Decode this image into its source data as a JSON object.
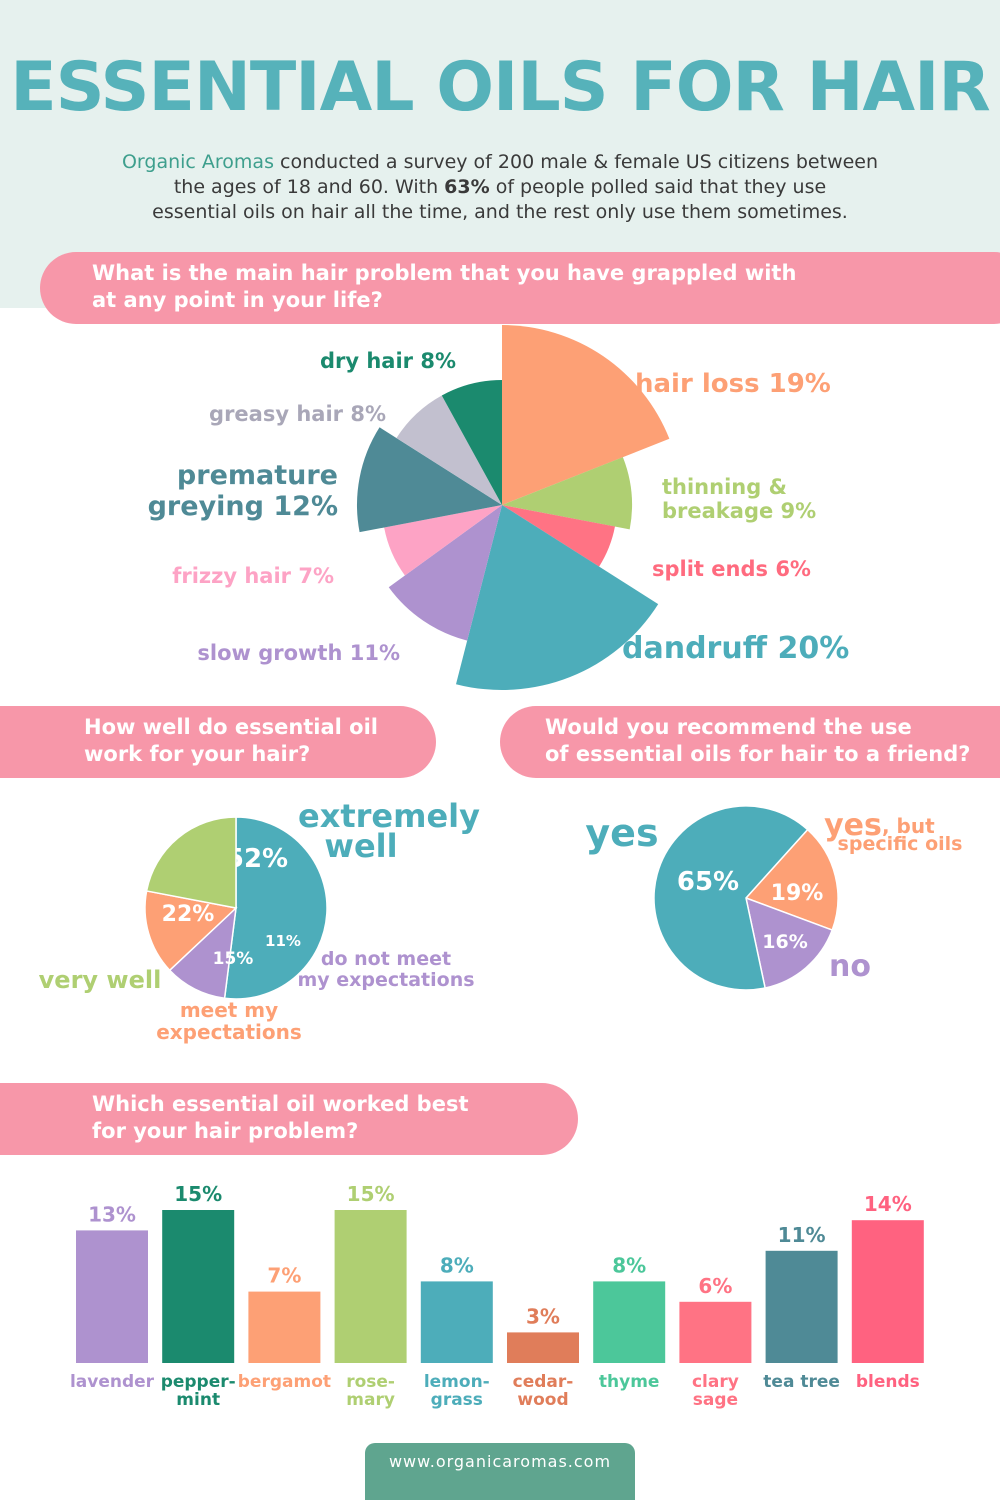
{
  "title": "ESSENTIAL OILS FOR HAIR",
  "intro": {
    "brand": "Organic Aromas",
    "line1": " conducted a survey of 200 male & female US citizens between",
    "line2": "the ages of 18 and 60. With ",
    "highlight": "63%",
    "line3": " of people polled said that they use",
    "line4": "essential oils on hair all the time, and the rest only use them sometimes."
  },
  "q1": {
    "line1": "What is the main hair problem that you have grappled with",
    "line2": "at any point in your life?"
  },
  "q2": {
    "line1": "How well do essential oil",
    "line2": "work for your hair?"
  },
  "q3": {
    "line1": "Would you recommend the use",
    "line2": "of essential oils for hair to a friend?"
  },
  "q4": {
    "line1": "Which essential oil worked best",
    "line2": "for your hair problem?"
  },
  "footer": "www.organicaromas.com",
  "chart_data": [
    {
      "type": "pie",
      "title": "What is the main hair problem that you have grappled with at any point in your life?",
      "slices": [
        {
          "label": "hair loss",
          "value": 19,
          "color": "#fda075"
        },
        {
          "label": "thinning & breakage",
          "value": 9,
          "color": "#afcf72"
        },
        {
          "label": "split ends",
          "value": 6,
          "color": "#ff7384"
        },
        {
          "label": "dandruff",
          "value": 20,
          "color": "#4dadba"
        },
        {
          "label": "slow growth",
          "value": 11,
          "color": "#ae92cf"
        },
        {
          "label": "frizzy hair",
          "value": 7,
          "color": "#fda3c5"
        },
        {
          "label": "premature greying",
          "value": 12,
          "color": "#4f8a96"
        },
        {
          "label": "greasy hair",
          "value": 8,
          "color": "#c2c0cf"
        },
        {
          "label": "dry hair",
          "value": 8,
          "color": "#1b8a6e"
        }
      ],
      "labels": [
        {
          "text": "hair loss 19%",
          "color": "#fda075"
        },
        {
          "text": "thinning &",
          "color": "#afcf72"
        },
        {
          "text": "breakage 9%",
          "color": "#afcf72"
        },
        {
          "text": "split ends 6%",
          "color": "#ff6b7f"
        },
        {
          "text": "dandruff 20%",
          "color": "#4dadba"
        },
        {
          "text": "slow growth 11%",
          "color": "#ae92cf"
        },
        {
          "text": "frizzy hair 7%",
          "color": "#fda3c5"
        },
        {
          "text": "premature",
          "color": "#4f8a96"
        },
        {
          "text": "greying 12%",
          "color": "#4f8a96"
        },
        {
          "text": "greasy hair 8%",
          "color": "#a9a7b8"
        },
        {
          "text": "dry hair 8%",
          "color": "#1b8a6e"
        }
      ]
    },
    {
      "type": "pie",
      "title": "How well do essential oil work for your hair?",
      "slices": [
        {
          "label": "extremely well",
          "value": 52,
          "color": "#4dadba",
          "pct_text": "52%"
        },
        {
          "label": "do not meet my expectations",
          "value": 11,
          "color": "#ae92cf",
          "pct_text": "11%"
        },
        {
          "label": "meet my expectations",
          "value": 15,
          "color": "#fda075",
          "pct_text": "15%"
        },
        {
          "label": "very well",
          "value": 22,
          "color": "#afcf72",
          "pct_text": "22%"
        }
      ],
      "labels": [
        {
          "text": "extremely",
          "color": "#4dadba"
        },
        {
          "text": "well",
          "color": "#4dadba"
        },
        {
          "text": "very well",
          "color": "#afcf72"
        },
        {
          "text": "meet my",
          "color": "#fda075"
        },
        {
          "text": "expectations",
          "color": "#fda075"
        },
        {
          "text": "do not meet",
          "color": "#ae92cf"
        },
        {
          "text": "my expectations",
          "color": "#ae92cf"
        }
      ]
    },
    {
      "type": "pie",
      "title": "Would you recommend the use of essential oils for hair to a friend?",
      "slices": [
        {
          "label": "yes, but specific oils",
          "value": 19,
          "color": "#fda075",
          "pct_text": "19%"
        },
        {
          "label": "no",
          "value": 16,
          "color": "#ae92cf",
          "pct_text": "16%"
        },
        {
          "label": "yes",
          "value": 65,
          "color": "#4dadba",
          "pct_text": "65%"
        }
      ],
      "labels": [
        {
          "text": "yes",
          "color": "#4dadba"
        },
        {
          "text": "yes",
          "color": "#fda075"
        },
        {
          "text": ", but",
          "color": "#fda075"
        },
        {
          "text": "specific oils",
          "color": "#fda075"
        },
        {
          "text": "no",
          "color": "#ae92cf"
        }
      ]
    },
    {
      "type": "bar",
      "title": "Which essential oil worked best for your hair problem?",
      "categories": [
        "lavender",
        "pepper-mint",
        "bergamot",
        "rose-mary",
        "lemon-grass",
        "cedar-wood",
        "thyme",
        "clary sage",
        "tea tree",
        "blends"
      ],
      "values": [
        13,
        15,
        7,
        15,
        8,
        3,
        8,
        6,
        11,
        14
      ],
      "value_labels": [
        "13%",
        "15%",
        "7%",
        "15%",
        "8%",
        "3%",
        "8%",
        "6%",
        "11%",
        "14%"
      ],
      "category_lines": [
        [
          "lavender"
        ],
        [
          "pepper-",
          "mint"
        ],
        [
          "bergamot"
        ],
        [
          "rose-",
          "mary"
        ],
        [
          "lemon-",
          "grass"
        ],
        [
          "cedar-",
          "wood"
        ],
        [
          "thyme"
        ],
        [
          "clary",
          "sage"
        ],
        [
          "tea tree"
        ],
        [
          "blends"
        ]
      ],
      "colors": [
        "#ae92cf",
        "#1b8a6e",
        "#fda075",
        "#afcf72",
        "#4dadba",
        "#e07d5a",
        "#4cc79a",
        "#ff7384",
        "#4f8a96",
        "#ff6280"
      ],
      "ylim": [
        0,
        15
      ]
    }
  ]
}
